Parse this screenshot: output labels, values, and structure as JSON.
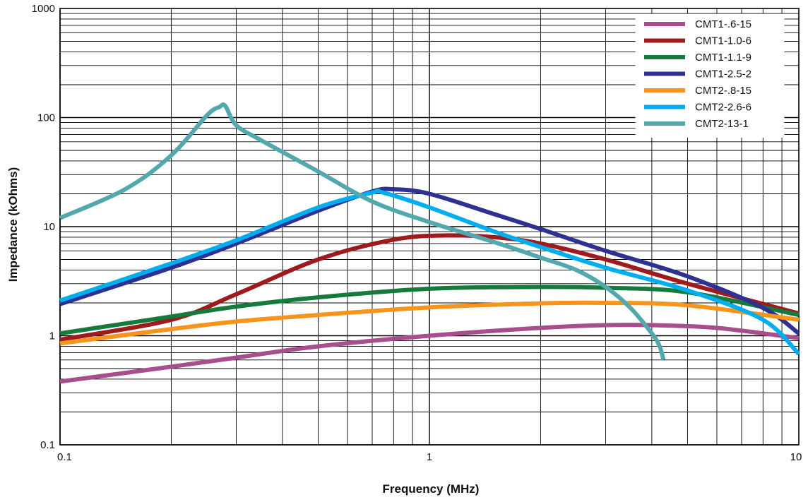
{
  "chart_data": {
    "type": "line",
    "title": "",
    "xlabel": "Frequency (MHz)",
    "ylabel": "Impedance (kOhms)",
    "xscale": "log",
    "yscale": "log",
    "xlim": [
      0.1,
      10
    ],
    "ylim": [
      0.1,
      1000
    ],
    "x_ticks": [
      {
        "value": 0.1,
        "label": "0.1"
      },
      {
        "value": 1,
        "label": "1"
      },
      {
        "value": 10,
        "label": "10"
      }
    ],
    "y_ticks": [
      {
        "value": 0.1,
        "label": "0.1"
      },
      {
        "value": 1,
        "label": "1"
      },
      {
        "value": 10,
        "label": "10"
      },
      {
        "value": 100,
        "label": "100"
      },
      {
        "value": 1000,
        "label": "1000"
      }
    ],
    "grid": true,
    "legend_position": "top-right",
    "series": [
      {
        "name": "CMT1-.6-15",
        "color": "#a84d8e",
        "x": [
          0.1,
          0.2,
          0.3,
          0.5,
          1,
          2,
          3,
          4,
          6,
          10
        ],
        "y": [
          0.38,
          0.52,
          0.63,
          0.8,
          1.0,
          1.18,
          1.25,
          1.25,
          1.18,
          0.95
        ]
      },
      {
        "name": "CMT1-1.0-6",
        "color": "#9e1a1d",
        "x": [
          0.1,
          0.2,
          0.3,
          0.5,
          0.8,
          1.1,
          1.5,
          2,
          3,
          5,
          10
        ],
        "y": [
          0.92,
          1.4,
          2.4,
          5.0,
          7.6,
          8.3,
          8.0,
          7.0,
          5.0,
          3.0,
          1.6
        ]
      },
      {
        "name": "CMT1-1.1-9",
        "color": "#157a3c",
        "x": [
          0.1,
          0.2,
          0.3,
          0.5,
          1,
          2,
          3,
          5,
          10
        ],
        "y": [
          1.05,
          1.5,
          1.85,
          2.25,
          2.7,
          2.8,
          2.75,
          2.5,
          1.55
        ]
      },
      {
        "name": "CMT1-2.5-2",
        "color": "#2e3191",
        "x": [
          0.1,
          0.2,
          0.3,
          0.5,
          0.7,
          0.8,
          1,
          1.5,
          2,
          3,
          5,
          8,
          10
        ],
        "y": [
          1.95,
          4.2,
          7.0,
          14.0,
          21.0,
          22.0,
          20.0,
          13.0,
          9.5,
          6.0,
          3.5,
          1.8,
          1.05
        ]
      },
      {
        "name": "CMT2-.8-15",
        "color": "#f7941d",
        "x": [
          0.1,
          0.2,
          0.3,
          0.5,
          1,
          2,
          3,
          5,
          10
        ],
        "y": [
          0.85,
          1.15,
          1.35,
          1.55,
          1.82,
          1.98,
          2.0,
          1.9,
          1.4
        ]
      },
      {
        "name": "CMT2-2.6-6",
        "color": "#00aeef",
        "x": [
          0.1,
          0.2,
          0.3,
          0.5,
          0.7,
          0.75,
          1,
          1.5,
          2,
          3,
          5,
          8,
          10
        ],
        "y": [
          2.1,
          4.6,
          7.5,
          15.0,
          20.5,
          20.5,
          15.0,
          9.0,
          6.5,
          4.2,
          2.6,
          1.4,
          0.68
        ]
      },
      {
        "name": "CMT2-13-1",
        "color": "#52a8ac",
        "x": [
          0.1,
          0.15,
          0.2,
          0.25,
          0.27,
          0.28,
          0.3,
          0.35,
          0.5,
          0.7,
          1,
          1.5,
          2,
          2.5,
          3,
          3.5,
          4,
          4.2,
          4.3
        ],
        "y": [
          12.0,
          22.0,
          45.0,
          105.0,
          125.0,
          128.0,
          85.0,
          62.0,
          32.0,
          17.0,
          11.0,
          7.2,
          5.2,
          4.0,
          2.8,
          1.8,
          1.05,
          0.8,
          0.6
        ]
      }
    ]
  }
}
